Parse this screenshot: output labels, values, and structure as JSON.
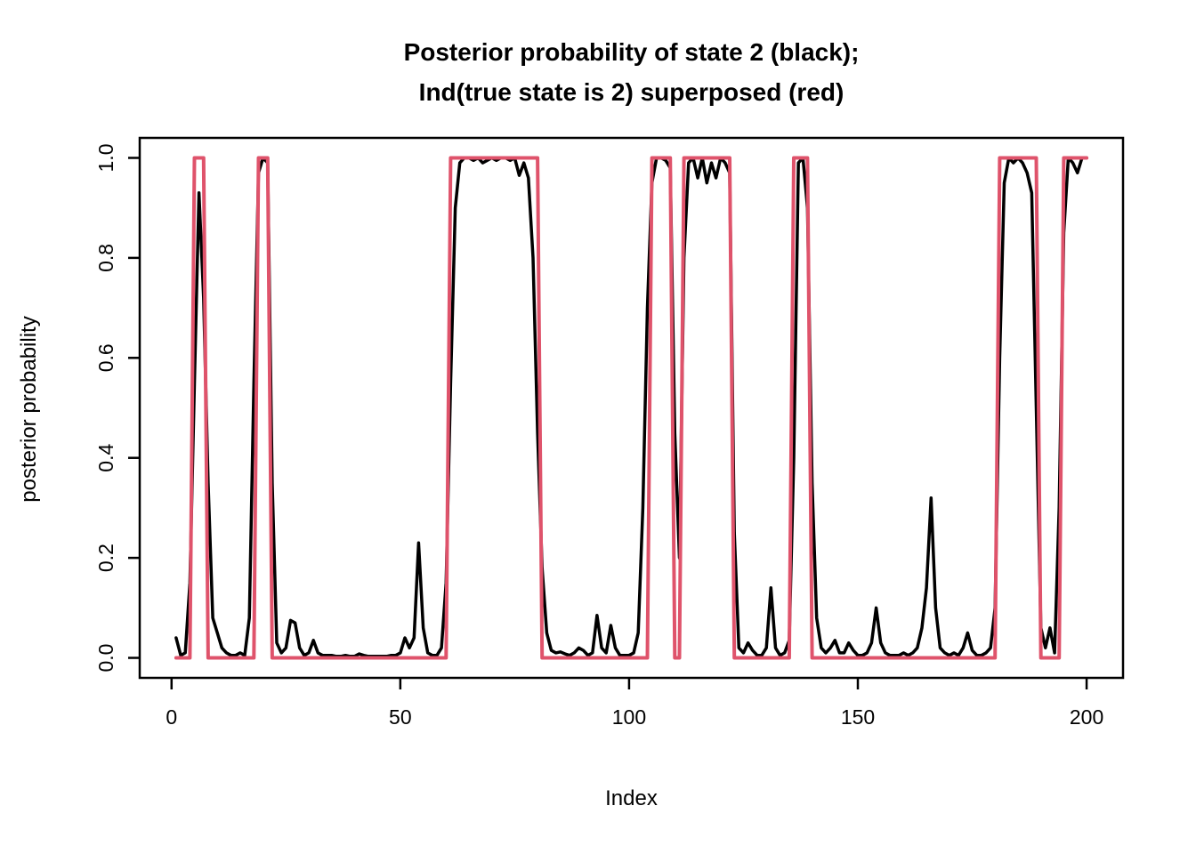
{
  "title": {
    "line1": "Posterior probability of state 2 (black);",
    "line2": "Ind(true state is 2) superposed (red)"
  },
  "axes": {
    "xlabel": "Index",
    "ylabel": "posterior probability"
  },
  "colors": {
    "posterior_line": "#000000",
    "indicator_line": "#DF536B",
    "box": "#000000"
  },
  "chart_data": {
    "type": "line",
    "title": "Posterior probability of state 2 (black); Ind(true state is 2) superposed (red)",
    "xlabel": "Index",
    "ylabel": "posterior probability",
    "xlim": [
      -6.96,
      207.96
    ],
    "ylim": [
      -0.04,
      1.04
    ],
    "grid": false,
    "legend_position": "none",
    "x_ticks": [
      0,
      50,
      100,
      150,
      200
    ],
    "x_tick_labels": [
      "0",
      "50",
      "100",
      "150",
      "200"
    ],
    "y_ticks": [
      0,
      0.2,
      0.4,
      0.6,
      0.8,
      1.0
    ],
    "y_tick_labels": [
      "0.0",
      "0.2",
      "0.4",
      "0.6",
      "0.8",
      "1.0"
    ],
    "x_start": 1,
    "x_step": 1,
    "n_points": 200,
    "series": [
      {
        "name": "posterior probability of state 2",
        "color": "#000000",
        "line_width": 3.5,
        "values": [
          0.04,
          0.005,
          0.01,
          0.15,
          0.55,
          0.93,
          0.72,
          0.35,
          0.08,
          0.05,
          0.02,
          0.01,
          0.005,
          0.005,
          0.01,
          0.005,
          0.08,
          0.55,
          0.97,
          1.0,
          0.99,
          0.35,
          0.03,
          0.01,
          0.02,
          0.075,
          0.07,
          0.02,
          0.005,
          0.01,
          0.035,
          0.01,
          0.005,
          0.005,
          0.005,
          0.003,
          0.003,
          0.005,
          0.003,
          0.003,
          0.008,
          0.005,
          0.003,
          0.003,
          0.003,
          0.003,
          0.003,
          0.005,
          0.005,
          0.01,
          0.04,
          0.02,
          0.04,
          0.23,
          0.06,
          0.01,
          0.005,
          0.005,
          0.02,
          0.15,
          0.55,
          0.9,
          0.99,
          1.0,
          1.0,
          0.995,
          1.0,
          0.99,
          0.995,
          1.0,
          0.995,
          1.0,
          1.0,
          0.995,
          1.0,
          0.965,
          0.99,
          0.96,
          0.8,
          0.45,
          0.18,
          0.05,
          0.015,
          0.01,
          0.012,
          0.008,
          0.005,
          0.01,
          0.02,
          0.015,
          0.005,
          0.01,
          0.085,
          0.02,
          0.01,
          0.065,
          0.02,
          0.005,
          0.005,
          0.005,
          0.01,
          0.05,
          0.3,
          0.7,
          0.95,
          1.0,
          1.0,
          0.995,
          0.98,
          0.45,
          0.2,
          0.8,
          0.99,
          1.0,
          0.96,
          1.0,
          0.95,
          0.99,
          0.96,
          1.0,
          0.99,
          0.97,
          0.25,
          0.02,
          0.01,
          0.03,
          0.015,
          0.005,
          0.005,
          0.02,
          0.14,
          0.02,
          0.005,
          0.01,
          0.035,
          0.4,
          0.99,
          1.0,
          0.9,
          0.35,
          0.08,
          0.02,
          0.01,
          0.02,
          0.035,
          0.01,
          0.01,
          0.03,
          0.015,
          0.005,
          0.005,
          0.01,
          0.03,
          0.1,
          0.03,
          0.01,
          0.005,
          0.005,
          0.005,
          0.01,
          0.005,
          0.01,
          0.02,
          0.06,
          0.14,
          0.32,
          0.1,
          0.02,
          0.01,
          0.005,
          0.01,
          0.005,
          0.02,
          0.05,
          0.015,
          0.005,
          0.005,
          0.01,
          0.02,
          0.1,
          0.6,
          0.95,
          1.0,
          0.99,
          1.0,
          0.99,
          0.97,
          0.93,
          0.5,
          0.06,
          0.02,
          0.06,
          0.01,
          0.3,
          0.85,
          1.0,
          0.99,
          0.97,
          1.0,
          1.0
        ]
      },
      {
        "name": "Ind(true state is 2)",
        "color": "#DF536B",
        "line_width": 4,
        "indicator": true,
        "intervals_at_1": [
          [
            5,
            7
          ],
          [
            19,
            21
          ],
          [
            61,
            80
          ],
          [
            105,
            109
          ],
          [
            112,
            122
          ],
          [
            136,
            139
          ],
          [
            181,
            189
          ],
          [
            195,
            200
          ]
        ]
      }
    ]
  }
}
